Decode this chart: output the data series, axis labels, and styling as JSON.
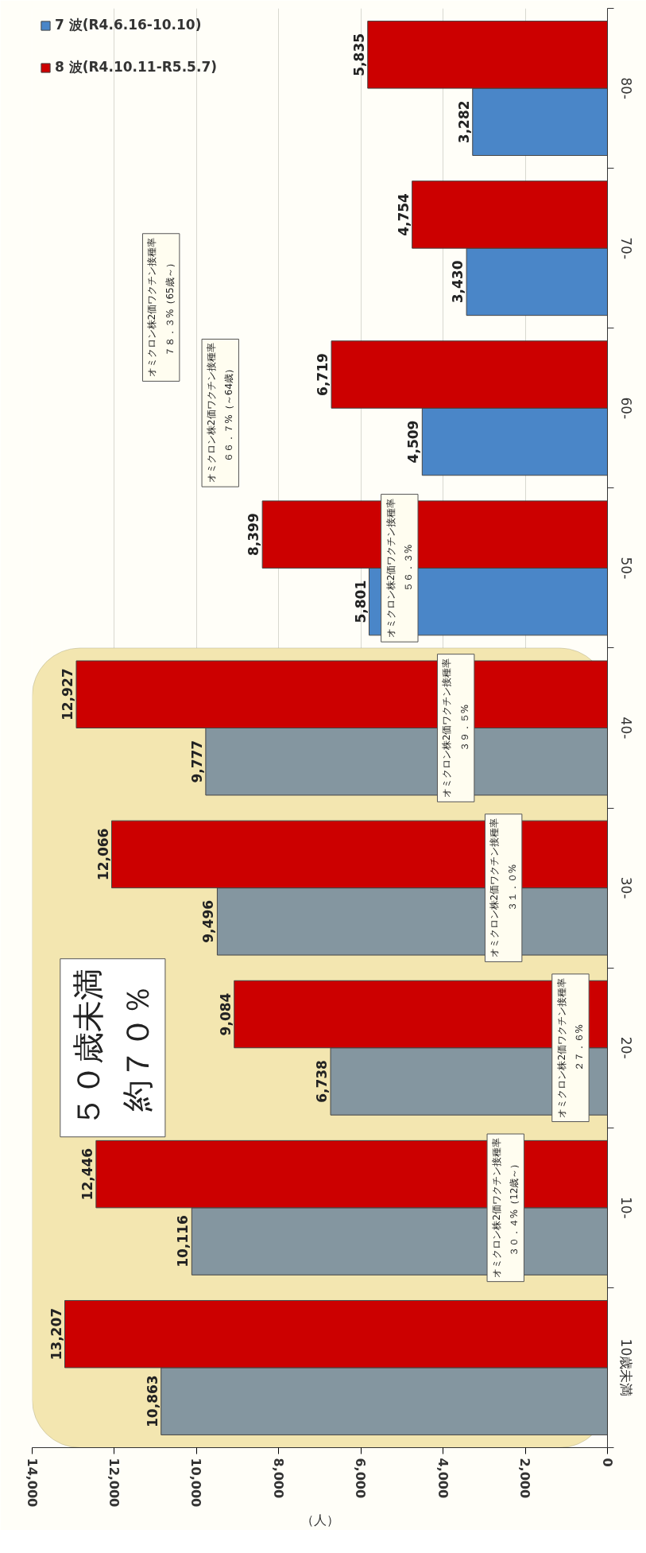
{
  "chart_data": {
    "type": "bar",
    "orientation": "horizontal",
    "categories": [
      "80-",
      "70-",
      "60-",
      "50-",
      "40-",
      "30-",
      "20-",
      "10-",
      "10歳未満"
    ],
    "series": [
      {
        "name": "7 波(R4.6.16-10.10)",
        "color": "#4a86c8",
        "colors": [
          "#4a86c8",
          "#4a86c8",
          "#4a86c8",
          "#4a86c8",
          "#8496a0",
          "#8496a0",
          "#8496a0",
          "#8496a0",
          "#8496a0"
        ],
        "values": [
          3282,
          3430,
          4509,
          5801,
          9777,
          9496,
          6738,
          10116,
          10863
        ],
        "value_labels": [
          "3,282",
          "3,430",
          "4,509",
          "5,801",
          "9,777",
          "9,496",
          "6,738",
          "10,116",
          "10,863"
        ]
      },
      {
        "name": "8 波(R4.10.11-R5.5.7)",
        "color": "#cc0000",
        "values": [
          5835,
          4754,
          6719,
          8399,
          12927,
          12066,
          9084,
          12446,
          13207
        ],
        "value_labels": [
          "5,835",
          "4,754",
          "6,719",
          "8,399",
          "12,927",
          "12,066",
          "9,084",
          "12,446",
          "13,207"
        ]
      }
    ],
    "xlabel": "（人）",
    "xlim": [
      14000,
      0
    ],
    "xticks": [
      0,
      {
        "value": 2000,
        "label": "2,000"
      },
      {
        "value": 4000,
        "label": "4,000"
      },
      {
        "value": 6000,
        "label": "6,000"
      },
      {
        "value": 8000,
        "label": "8,000"
      },
      {
        "value": 10000,
        "label": "10,000"
      },
      {
        "value": 12000,
        "label": "12,000"
      },
      {
        "value": 14000,
        "label": "14,000"
      }
    ],
    "grid": "x",
    "legend": "top left",
    "bands": [
      {
        "axis": "y",
        "from": "10歳未満",
        "to": "40-",
        "label": "５０歳未満約７０％",
        "color": "#f3e6b0"
      }
    ],
    "annotations": [
      {
        "text": "オミクロン株2価ワクチン接種率３０．４%（12歳～）",
        "x": 2480,
        "y": "10-"
      },
      {
        "text": "オミクロン株2価ワクチン接種率２７．６%",
        "x": 900,
        "y": "20-"
      },
      {
        "text": "オミクロン株2価ワクチン接種率３１．０%",
        "x": 2530,
        "y": "30-"
      },
      {
        "text": "オミクロン株2価ワクチン接種率３９．５%",
        "x": 3690,
        "y": "40-"
      },
      {
        "text": "オミクロン株2価ワクチン接種率５６．３%",
        "x": 5060,
        "y": "50-"
      },
      "オミクロン株2価ワクチン接種率６６．７%（～64歳）",
      "オミクロン株2価ワクチン接種率７８．３%（65歳～）"
    ]
  }
}
